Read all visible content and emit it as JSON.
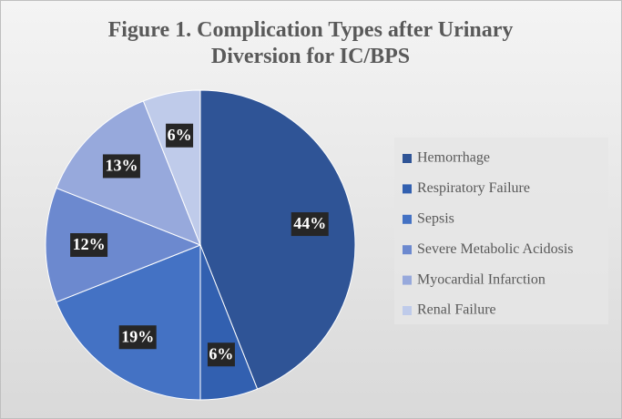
{
  "chart_data": {
    "type": "pie",
    "title": "Figure 1. Complication Types after Urinary Diversion for IC/BPS",
    "categories": [
      "Hemorrhage",
      "Respiratory Failure",
      "Sepsis",
      "Severe Metabolic Acidosis",
      "Myocardial Infarction",
      "Renal Failure"
    ],
    "values": [
      44,
      6,
      19,
      12,
      13,
      6
    ],
    "value_labels": [
      "44%",
      "6%",
      "19%",
      "12%",
      "13%",
      "6%"
    ],
    "colors": [
      "#2f5496",
      "#3260b0",
      "#4472c4",
      "#6c89cf",
      "#97a9dc",
      "#bfcbea"
    ],
    "legend": "right"
  }
}
